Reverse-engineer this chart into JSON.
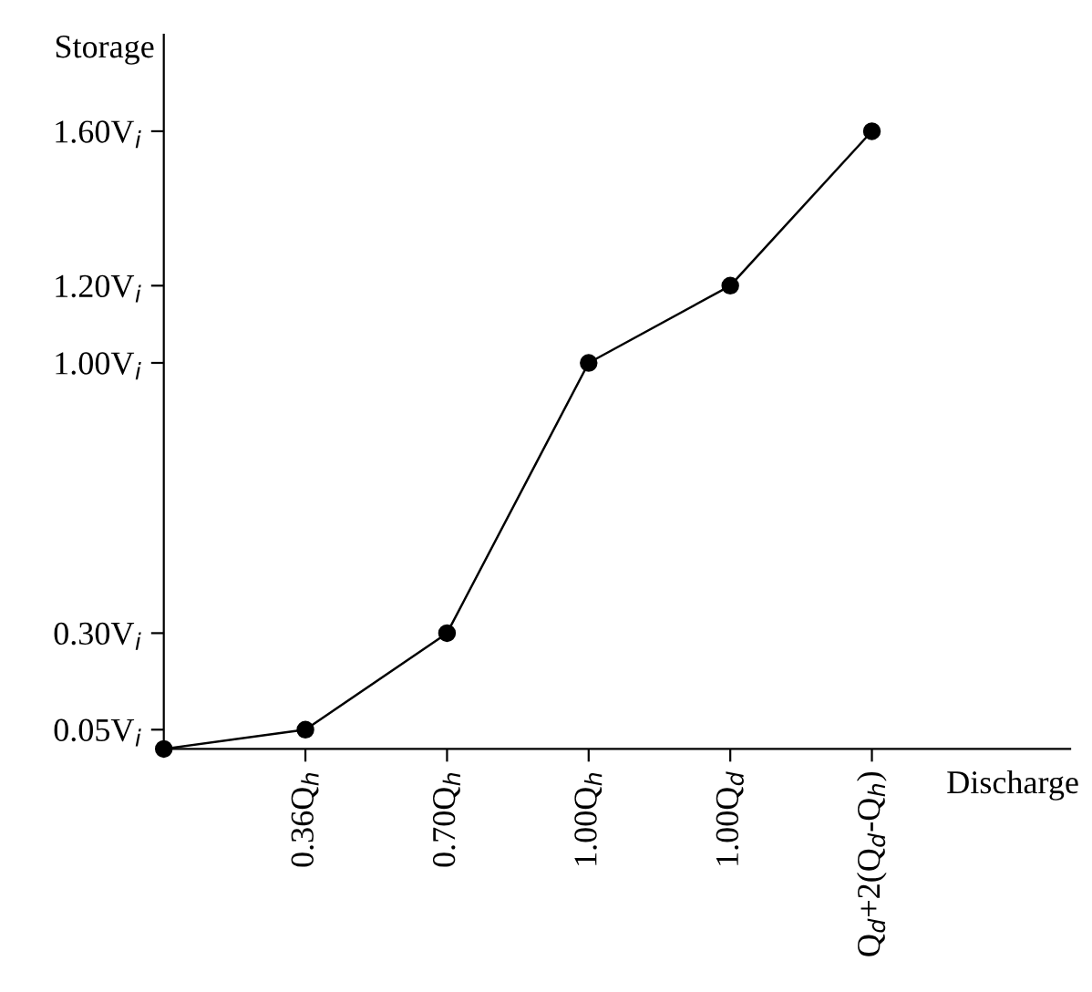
{
  "chart_data": {
    "type": "line",
    "xlabel": "Discharge",
    "ylabel": "Storage",
    "categories": [
      null,
      "0.36Q$_{h}$",
      "0.70Q$_{h}$",
      "1.00Q$_{h}$",
      "1.00Q$_{d}$",
      "Q$_{d}$+2(Q$_{d}$-Q$_{h}$)"
    ],
    "series": [
      {
        "color": "#000000",
        "values": [
          0,
          0.05,
          0.3,
          1.0,
          1.2,
          1.6
        ]
      }
    ],
    "marker": "circle",
    "line_style": "solid",
    "grid": false,
    "legend": false,
    "ylim": [
      0,
      1.85
    ],
    "yticks": [
      {
        "value": 0.05,
        "label": "0.05V$_{i}$"
      },
      {
        "value": 0.3,
        "label": "0.30V$_{i}$"
      },
      {
        "value": 1.0,
        "label": "1.00V$_{i}$"
      },
      {
        "value": 1.2,
        "label": "1.20V$_{i}$"
      },
      {
        "value": 1.6,
        "label": "1.60V$_{i}$"
      }
    ]
  }
}
